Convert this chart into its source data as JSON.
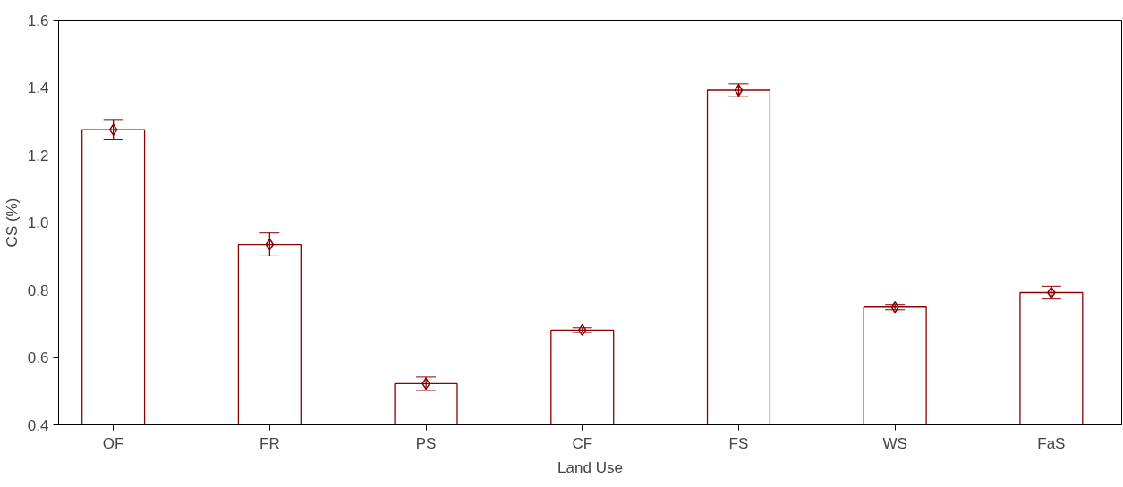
{
  "chart_data": {
    "type": "bar",
    "xlabel": "Land Use",
    "ylabel": "CS (%)",
    "categories": [
      "OF",
      "FR",
      "PS",
      "CF",
      "FS",
      "WS",
      "FaS"
    ],
    "series": [
      {
        "color": "#8b0000",
        "values": [
          1.275,
          0.935,
          0.522,
          0.681,
          1.392,
          0.749,
          0.792
        ],
        "errors": [
          0.03,
          0.034,
          0.02,
          0.007,
          0.019,
          0.008,
          0.019
        ]
      },
      {
        "type": "scatter",
        "color": "#8b0000",
        "marker": "diamond",
        "x": [
          "OF",
          "FR",
          "PS",
          "CF",
          "FS",
          "WS",
          "FaS"
        ],
        "values": [
          1.275,
          0.935,
          0.522,
          0.681,
          1.392,
          0.749,
          0.792
        ]
      }
    ],
    "grid": false,
    "ylim": [
      0.4,
      1.6
    ],
    "yticks": [
      0.4,
      0.6,
      0.8,
      {
        "value": 1.0,
        "label": "1.0"
      },
      1.2,
      1.4,
      1.6
    ]
  }
}
